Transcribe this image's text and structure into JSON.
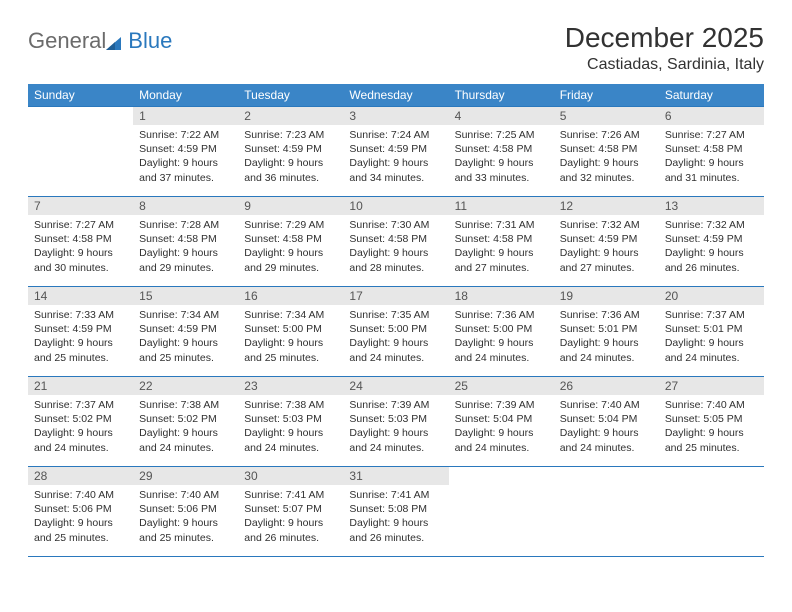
{
  "logo": {
    "text1": "General",
    "text2": "Blue"
  },
  "title": "December 2025",
  "location": "Castiadas, Sardinia, Italy",
  "colors": {
    "header_bg": "#3a85c7",
    "border": "#2a78bd",
    "daynum_bg": "#e7e7e7",
    "text": "#303030"
  },
  "weekdays": [
    "Sunday",
    "Monday",
    "Tuesday",
    "Wednesday",
    "Thursday",
    "Friday",
    "Saturday"
  ],
  "first_weekday_index": 1,
  "days": [
    {
      "n": 1,
      "sunrise": "7:22 AM",
      "sunset": "4:59 PM",
      "daylight": "9 hours and 37 minutes."
    },
    {
      "n": 2,
      "sunrise": "7:23 AM",
      "sunset": "4:59 PM",
      "daylight": "9 hours and 36 minutes."
    },
    {
      "n": 3,
      "sunrise": "7:24 AM",
      "sunset": "4:59 PM",
      "daylight": "9 hours and 34 minutes."
    },
    {
      "n": 4,
      "sunrise": "7:25 AM",
      "sunset": "4:58 PM",
      "daylight": "9 hours and 33 minutes."
    },
    {
      "n": 5,
      "sunrise": "7:26 AM",
      "sunset": "4:58 PM",
      "daylight": "9 hours and 32 minutes."
    },
    {
      "n": 6,
      "sunrise": "7:27 AM",
      "sunset": "4:58 PM",
      "daylight": "9 hours and 31 minutes."
    },
    {
      "n": 7,
      "sunrise": "7:27 AM",
      "sunset": "4:58 PM",
      "daylight": "9 hours and 30 minutes."
    },
    {
      "n": 8,
      "sunrise": "7:28 AM",
      "sunset": "4:58 PM",
      "daylight": "9 hours and 29 minutes."
    },
    {
      "n": 9,
      "sunrise": "7:29 AM",
      "sunset": "4:58 PM",
      "daylight": "9 hours and 29 minutes."
    },
    {
      "n": 10,
      "sunrise": "7:30 AM",
      "sunset": "4:58 PM",
      "daylight": "9 hours and 28 minutes."
    },
    {
      "n": 11,
      "sunrise": "7:31 AM",
      "sunset": "4:58 PM",
      "daylight": "9 hours and 27 minutes."
    },
    {
      "n": 12,
      "sunrise": "7:32 AM",
      "sunset": "4:59 PM",
      "daylight": "9 hours and 27 minutes."
    },
    {
      "n": 13,
      "sunrise": "7:32 AM",
      "sunset": "4:59 PM",
      "daylight": "9 hours and 26 minutes."
    },
    {
      "n": 14,
      "sunrise": "7:33 AM",
      "sunset": "4:59 PM",
      "daylight": "9 hours and 25 minutes."
    },
    {
      "n": 15,
      "sunrise": "7:34 AM",
      "sunset": "4:59 PM",
      "daylight": "9 hours and 25 minutes."
    },
    {
      "n": 16,
      "sunrise": "7:34 AM",
      "sunset": "5:00 PM",
      "daylight": "9 hours and 25 minutes."
    },
    {
      "n": 17,
      "sunrise": "7:35 AM",
      "sunset": "5:00 PM",
      "daylight": "9 hours and 24 minutes."
    },
    {
      "n": 18,
      "sunrise": "7:36 AM",
      "sunset": "5:00 PM",
      "daylight": "9 hours and 24 minutes."
    },
    {
      "n": 19,
      "sunrise": "7:36 AM",
      "sunset": "5:01 PM",
      "daylight": "9 hours and 24 minutes."
    },
    {
      "n": 20,
      "sunrise": "7:37 AM",
      "sunset": "5:01 PM",
      "daylight": "9 hours and 24 minutes."
    },
    {
      "n": 21,
      "sunrise": "7:37 AM",
      "sunset": "5:02 PM",
      "daylight": "9 hours and 24 minutes."
    },
    {
      "n": 22,
      "sunrise": "7:38 AM",
      "sunset": "5:02 PM",
      "daylight": "9 hours and 24 minutes."
    },
    {
      "n": 23,
      "sunrise": "7:38 AM",
      "sunset": "5:03 PM",
      "daylight": "9 hours and 24 minutes."
    },
    {
      "n": 24,
      "sunrise": "7:39 AM",
      "sunset": "5:03 PM",
      "daylight": "9 hours and 24 minutes."
    },
    {
      "n": 25,
      "sunrise": "7:39 AM",
      "sunset": "5:04 PM",
      "daylight": "9 hours and 24 minutes."
    },
    {
      "n": 26,
      "sunrise": "7:40 AM",
      "sunset": "5:04 PM",
      "daylight": "9 hours and 24 minutes."
    },
    {
      "n": 27,
      "sunrise": "7:40 AM",
      "sunset": "5:05 PM",
      "daylight": "9 hours and 25 minutes."
    },
    {
      "n": 28,
      "sunrise": "7:40 AM",
      "sunset": "5:06 PM",
      "daylight": "9 hours and 25 minutes."
    },
    {
      "n": 29,
      "sunrise": "7:40 AM",
      "sunset": "5:06 PM",
      "daylight": "9 hours and 25 minutes."
    },
    {
      "n": 30,
      "sunrise": "7:41 AM",
      "sunset": "5:07 PM",
      "daylight": "9 hours and 26 minutes."
    },
    {
      "n": 31,
      "sunrise": "7:41 AM",
      "sunset": "5:08 PM",
      "daylight": "9 hours and 26 minutes."
    }
  ],
  "labels": {
    "sunrise": "Sunrise:",
    "sunset": "Sunset:",
    "daylight": "Daylight:"
  }
}
